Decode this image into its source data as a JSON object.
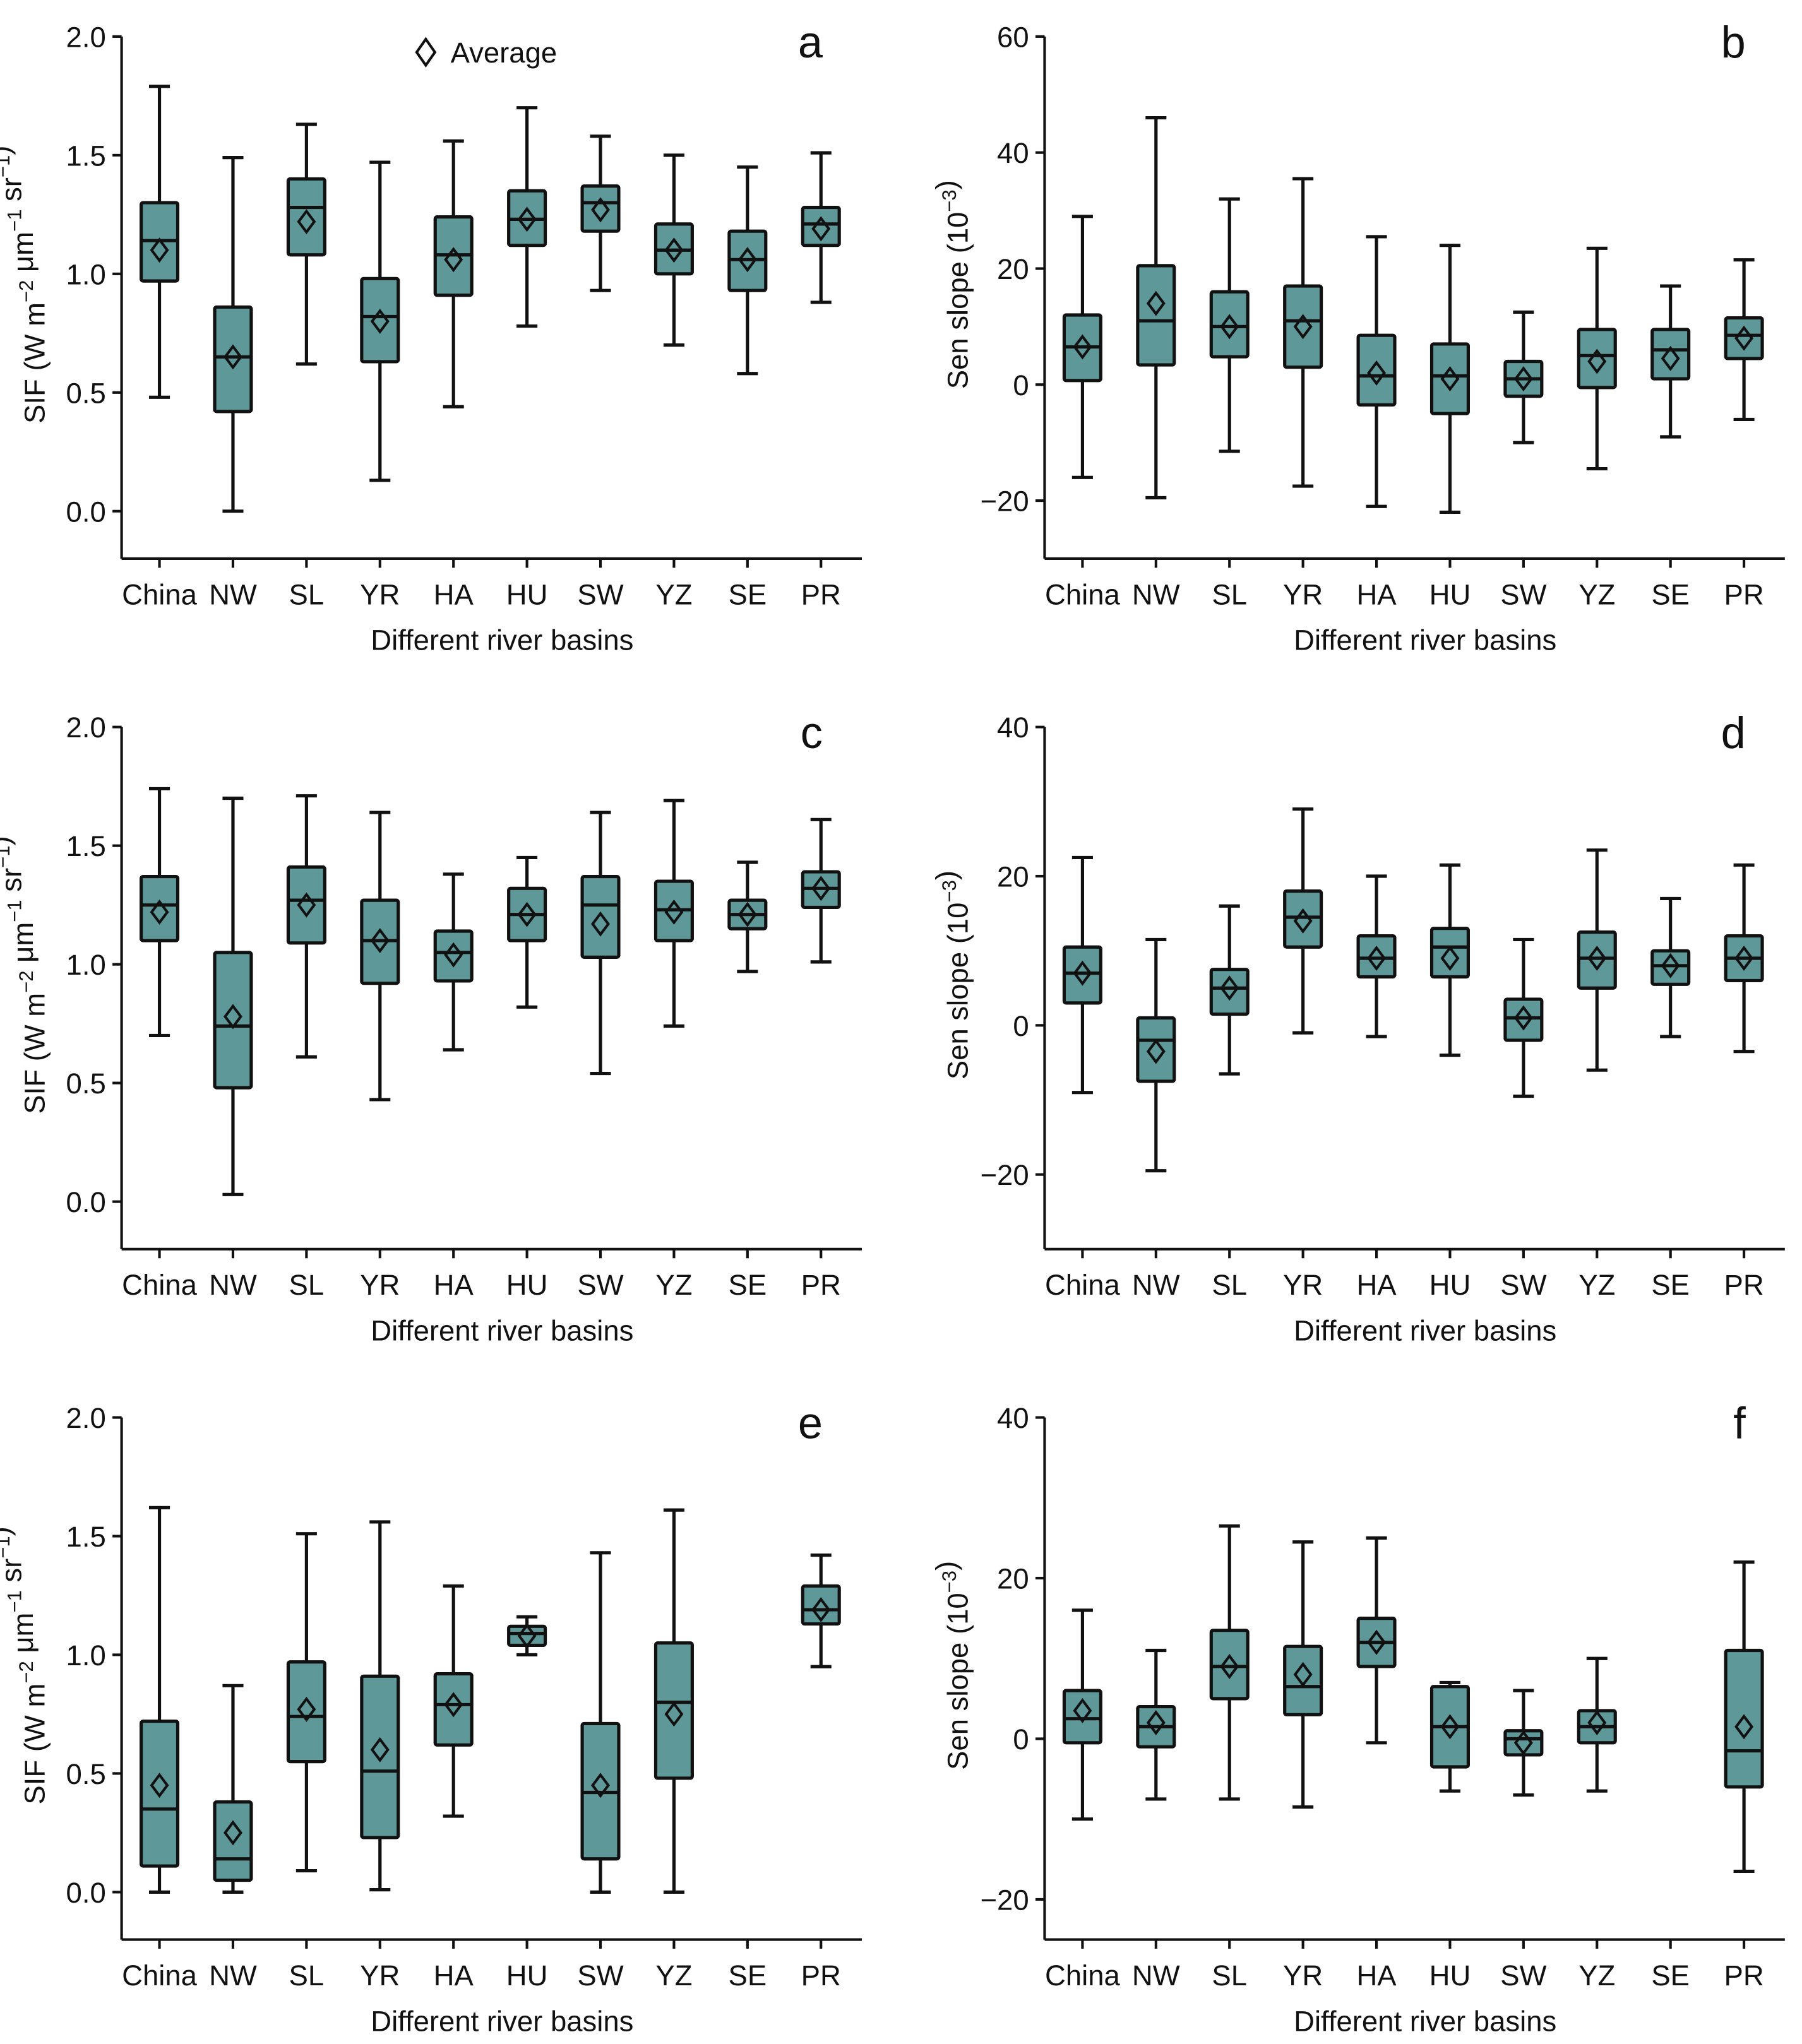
{
  "colors": {
    "box_fill": "#5f9898",
    "stroke": "#111111"
  },
  "legend": {
    "symbol": "◇",
    "label": "Average"
  },
  "chart_data": [
    {
      "panel": "a",
      "type": "box",
      "categories": [
        "China",
        "NW",
        "SL",
        "YR",
        "HA",
        "HU",
        "SW",
        "YZ",
        "SE",
        "PR"
      ],
      "xlabel": "Different river basins",
      "ylabel_parts": [
        {
          "t": "SIF (W m"
        },
        {
          "t": "−2",
          "sup": true
        },
        {
          "t": " μm"
        },
        {
          "t": "−1",
          "sup": true
        },
        {
          "t": " sr"
        },
        {
          "t": "−1",
          "sup": true
        },
        {
          "t": ")"
        }
      ],
      "ylim": [
        -0.2,
        2.0
      ],
      "yticks": [
        0.0,
        0.5,
        1.0,
        1.5,
        2.0
      ],
      "ytick_labels": [
        "0.0",
        "0.5",
        "1.0",
        "1.5",
        "2.0"
      ],
      "series_fields": [
        "whisker_low",
        "q1",
        "median",
        "q3",
        "whisker_high",
        "mean"
      ],
      "boxes": [
        [
          0.48,
          0.97,
          1.14,
          1.3,
          1.79,
          1.1
        ],
        [
          0.0,
          0.42,
          0.65,
          0.86,
          1.49,
          0.65
        ],
        [
          0.62,
          1.08,
          1.28,
          1.4,
          1.63,
          1.22
        ],
        [
          0.13,
          0.63,
          0.82,
          0.98,
          1.47,
          0.8
        ],
        [
          0.44,
          0.91,
          1.08,
          1.24,
          1.56,
          1.06
        ],
        [
          0.78,
          1.12,
          1.23,
          1.35,
          1.7,
          1.23
        ],
        [
          0.93,
          1.18,
          1.3,
          1.37,
          1.58,
          1.27
        ],
        [
          0.7,
          1.0,
          1.1,
          1.21,
          1.5,
          1.1
        ],
        [
          0.58,
          0.93,
          1.06,
          1.18,
          1.45,
          1.06
        ],
        [
          0.88,
          1.12,
          1.21,
          1.28,
          1.51,
          1.19
        ]
      ],
      "legend": true
    },
    {
      "panel": "b",
      "type": "box",
      "categories": [
        "China",
        "NW",
        "SL",
        "YR",
        "HA",
        "HU",
        "SW",
        "YZ",
        "SE",
        "PR"
      ],
      "xlabel": "Different river basins",
      "ylabel_parts": [
        {
          "t": "Sen slope (10"
        },
        {
          "t": "−3",
          "sup": true
        },
        {
          "t": ")"
        }
      ],
      "ylim": [
        -30,
        60
      ],
      "yticks": [
        -20,
        0,
        20,
        40,
        60
      ],
      "ytick_labels": [
        "−20",
        "0",
        "20",
        "40",
        "60"
      ],
      "series_fields": [
        "whisker_low",
        "q1",
        "median",
        "q3",
        "whisker_high",
        "mean"
      ],
      "boxes": [
        [
          -16,
          0.7,
          6.5,
          12,
          29,
          6.5
        ],
        [
          -19.5,
          3.4,
          11,
          20.5,
          46,
          14
        ],
        [
          -11.5,
          4.8,
          10,
          16,
          32,
          10
        ],
        [
          -17.5,
          3,
          11,
          17,
          35.5,
          10
        ],
        [
          -21,
          -3.5,
          1.5,
          8.5,
          25.5,
          2
        ],
        [
          -22,
          -5,
          1.5,
          7,
          24,
          1
        ],
        [
          -10,
          -2,
          1,
          4,
          12.5,
          1
        ],
        [
          -14.5,
          -0.5,
          5,
          9.5,
          23.5,
          4
        ],
        [
          -9,
          1,
          6,
          9.5,
          17,
          4.5
        ],
        [
          -6,
          4.5,
          8.5,
          11.5,
          21.5,
          8
        ]
      ]
    },
    {
      "panel": "c",
      "type": "box",
      "categories": [
        "China",
        "NW",
        "SL",
        "YR",
        "HA",
        "HU",
        "SW",
        "YZ",
        "SE",
        "PR"
      ],
      "xlabel": "Different river basins",
      "ylabel_parts": [
        {
          "t": "SIF (W m"
        },
        {
          "t": "−2",
          "sup": true
        },
        {
          "t": " μm"
        },
        {
          "t": "−1",
          "sup": true
        },
        {
          "t": " sr"
        },
        {
          "t": "−1",
          "sup": true
        },
        {
          "t": ")"
        }
      ],
      "ylim": [
        -0.2,
        2.0
      ],
      "yticks": [
        0.0,
        0.5,
        1.0,
        1.5,
        2.0
      ],
      "ytick_labels": [
        "0.0",
        "0.5",
        "1.0",
        "1.5",
        "2.0"
      ],
      "series_fields": [
        "whisker_low",
        "q1",
        "median",
        "q3",
        "whisker_high",
        "mean"
      ],
      "boxes": [
        [
          0.7,
          1.1,
          1.25,
          1.37,
          1.74,
          1.22
        ],
        [
          0.03,
          0.48,
          0.74,
          1.05,
          1.7,
          0.78
        ],
        [
          0.61,
          1.09,
          1.27,
          1.41,
          1.71,
          1.25
        ],
        [
          0.43,
          0.92,
          1.1,
          1.27,
          1.64,
          1.1
        ],
        [
          0.64,
          0.93,
          1.05,
          1.14,
          1.38,
          1.04
        ],
        [
          0.82,
          1.1,
          1.21,
          1.32,
          1.45,
          1.21
        ],
        [
          0.54,
          1.03,
          1.25,
          1.37,
          1.64,
          1.17
        ],
        [
          0.74,
          1.1,
          1.23,
          1.35,
          1.69,
          1.22
        ],
        [
          0.97,
          1.15,
          1.21,
          1.27,
          1.43,
          1.21
        ],
        [
          1.01,
          1.24,
          1.32,
          1.39,
          1.61,
          1.32
        ]
      ]
    },
    {
      "panel": "d",
      "type": "box",
      "categories": [
        "China",
        "NW",
        "SL",
        "YR",
        "HA",
        "HU",
        "SW",
        "YZ",
        "SE",
        "PR"
      ],
      "xlabel": "Different river basins",
      "ylabel_parts": [
        {
          "t": "Sen slope (10"
        },
        {
          "t": "−3",
          "sup": true
        },
        {
          "t": ")"
        }
      ],
      "ylim": [
        -30,
        40
      ],
      "yticks": [
        -20,
        0,
        20,
        40
      ],
      "ytick_labels": [
        "−20",
        "0",
        "20",
        "40"
      ],
      "series_fields": [
        "whisker_low",
        "q1",
        "median",
        "q3",
        "whisker_high",
        "mean"
      ],
      "boxes": [
        [
          -9,
          3,
          7,
          10.5,
          22.5,
          7
        ],
        [
          -19.5,
          -7.5,
          -2,
          1,
          11.5,
          -3.5
        ],
        [
          -6.5,
          1.5,
          5,
          7.5,
          16,
          5
        ],
        [
          -1,
          10.5,
          14.5,
          18,
          29,
          14
        ],
        [
          -1.5,
          6.5,
          9,
          12,
          20,
          9
        ],
        [
          -4,
          6.5,
          10.5,
          13,
          21.5,
          9
        ],
        [
          -9.5,
          -2,
          1,
          3.5,
          11.5,
          1
        ],
        [
          -6,
          5,
          9,
          12.5,
          23.5,
          9
        ],
        [
          -1.5,
          5.5,
          8,
          10,
          17,
          8
        ],
        [
          -3.5,
          6,
          9,
          12,
          21.5,
          9
        ]
      ]
    },
    {
      "panel": "e",
      "type": "box",
      "categories": [
        "China",
        "NW",
        "SL",
        "YR",
        "HA",
        "HU",
        "SW",
        "YZ",
        "SE",
        "PR"
      ],
      "xlabel": "Different river basins",
      "ylabel_parts": [
        {
          "t": "SIF (W m"
        },
        {
          "t": "−2",
          "sup": true
        },
        {
          "t": " μm"
        },
        {
          "t": "−1",
          "sup": true
        },
        {
          "t": " sr"
        },
        {
          "t": "−1",
          "sup": true
        },
        {
          "t": ")"
        }
      ],
      "ylim": [
        -0.2,
        2.0
      ],
      "yticks": [
        0.0,
        0.5,
        1.0,
        1.5,
        2.0
      ],
      "ytick_labels": [
        "0.0",
        "0.5",
        "1.0",
        "1.5",
        "2.0"
      ],
      "series_fields": [
        "whisker_low",
        "q1",
        "median",
        "q3",
        "whisker_high",
        "mean"
      ],
      "boxes": [
        [
          0.0,
          0.11,
          0.35,
          0.72,
          1.62,
          0.45
        ],
        [
          0.0,
          0.05,
          0.14,
          0.38,
          0.87,
          0.25
        ],
        [
          0.09,
          0.55,
          0.74,
          0.97,
          1.51,
          0.77
        ],
        [
          0.01,
          0.23,
          0.51,
          0.91,
          1.56,
          0.6
        ],
        [
          0.32,
          0.62,
          0.79,
          0.92,
          1.29,
          0.79
        ],
        [
          1.0,
          1.04,
          1.09,
          1.12,
          1.16,
          1.08
        ],
        [
          0.0,
          0.14,
          0.42,
          0.71,
          1.43,
          0.45
        ],
        [
          0.0,
          0.48,
          0.8,
          1.05,
          1.61,
          0.75
        ],
        null,
        [
          0.95,
          1.13,
          1.19,
          1.29,
          1.42,
          1.19
        ]
      ]
    },
    {
      "panel": "f",
      "type": "box",
      "categories": [
        "China",
        "NW",
        "SL",
        "YR",
        "HA",
        "HU",
        "SW",
        "YZ",
        "SE",
        "PR"
      ],
      "xlabel": "Different river basins",
      "ylabel_parts": [
        {
          "t": "Sen slope (10"
        },
        {
          "t": "−3",
          "sup": true
        },
        {
          "t": ")"
        }
      ],
      "ylim": [
        -25,
        40
      ],
      "yticks": [
        -20,
        0,
        20,
        40
      ],
      "ytick_labels": [
        "−20",
        "0",
        "20",
        "40"
      ],
      "series_fields": [
        "whisker_low",
        "q1",
        "median",
        "q3",
        "whisker_high",
        "mean"
      ],
      "boxes": [
        [
          -10,
          -0.5,
          2.5,
          6,
          16,
          3.5
        ],
        [
          -7.5,
          -1,
          1.5,
          4,
          11,
          2
        ],
        [
          -7.5,
          5,
          9,
          13.5,
          26.5,
          9
        ],
        [
          -8.5,
          3,
          6.5,
          11.5,
          24.5,
          8
        ],
        [
          -0.5,
          9,
          12,
          15,
          25,
          12
        ],
        [
          -6.5,
          -3.5,
          1.5,
          6.5,
          7,
          1.5
        ],
        [
          -7,
          -2,
          0,
          1,
          6,
          -0.5
        ],
        [
          -6.5,
          -0.5,
          1.5,
          3.5,
          10,
          2
        ],
        null,
        [
          -16.5,
          -6,
          -1.5,
          11,
          22,
          1.5
        ]
      ]
    }
  ]
}
